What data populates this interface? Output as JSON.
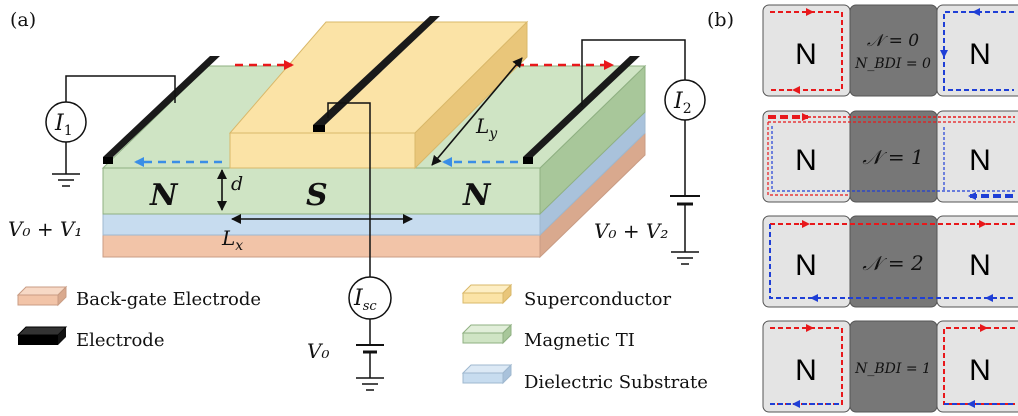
{
  "panels": {
    "a": "(a)",
    "b": "(b)"
  },
  "device": {
    "region_left": "N",
    "region_center": "S",
    "region_right": "N",
    "dim_d": "d",
    "dim_lx_base": "L",
    "dim_lx_sub": "x",
    "dim_ly_base": "L",
    "dim_ly_sub": "y"
  },
  "circuit": {
    "i1_base": "I",
    "i1_sub": "1",
    "i2_base": "I",
    "i2_sub": "2",
    "isc_base": "I",
    "isc_sub": "sc",
    "v_left": "V₀ + V₁",
    "v_right": "V₀ + V₂",
    "v_center": "V₀"
  },
  "legend": [
    {
      "label": "Back-gate Electrode",
      "color": "#f2c4a8"
    },
    {
      "label": "Electrode",
      "color": "#1a1a1a"
    },
    {
      "label": "Superconductor",
      "color": "#fbe3a6"
    },
    {
      "label": "Magnetic TI",
      "color": "#cfe4c4"
    },
    {
      "label": "Dielectric Substrate",
      "color": "#c7dcef"
    }
  ],
  "panel_b_rows": [
    {
      "left": "N",
      "center_line1": "𝒩 = 0",
      "center_line2": "N_BDI = 0",
      "right": "N"
    },
    {
      "left": "N",
      "center_line1": "𝒩 = 1",
      "center_line2": "",
      "right": "N"
    },
    {
      "left": "N",
      "center_line1": "𝒩 = 2",
      "center_line2": "",
      "right": "N"
    },
    {
      "left": "N",
      "center_line1": "N_BDI = 1",
      "center_line2": "",
      "right": "N"
    }
  ],
  "colors": {
    "edge_red": "#e8181b",
    "edge_blue": "#1f3fd6",
    "edge_arrow_blue": "#3a8ee6",
    "normal_block": "#e4e4e4",
    "super_block": "#777777"
  }
}
